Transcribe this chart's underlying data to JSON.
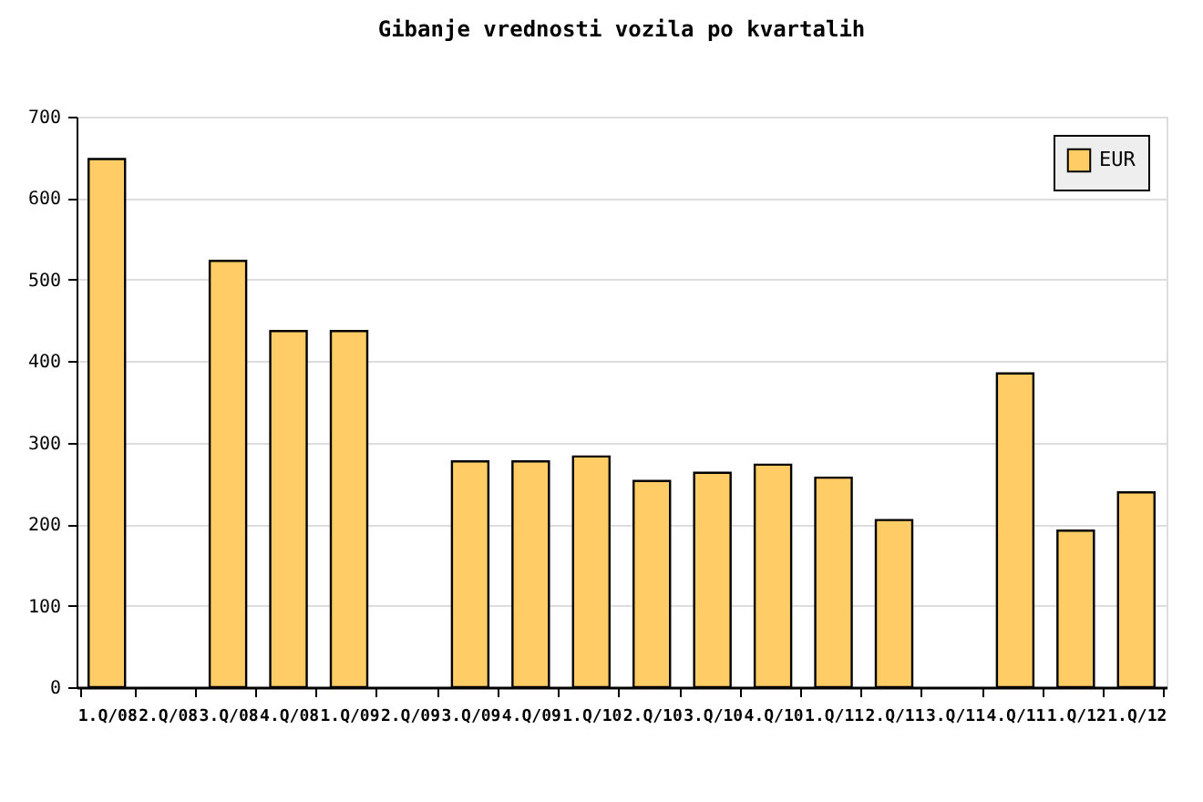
{
  "chart_data": {
    "type": "bar",
    "title": "Gibanje vrednosti vozila po kvartalih",
    "categories": [
      "1.Q/08",
      "2.Q/08",
      "3.Q/08",
      "4.Q/08",
      "1.Q/09",
      "2.Q/09",
      "3.Q/09",
      "4.Q/09",
      "1.Q/10",
      "2.Q/10",
      "3.Q/10",
      "4.Q/10",
      "1.Q/11",
      "2.Q/11",
      "3.Q/11",
      "4.Q/11",
      "1.Q/12",
      "1.Q/12"
    ],
    "series": [
      {
        "name": "EUR",
        "color": "#ffcc66",
        "values": [
          648,
          null,
          523,
          437,
          437,
          null,
          277,
          277,
          283,
          253,
          263,
          273,
          257,
          205,
          null,
          385,
          192,
          239
        ]
      }
    ],
    "ylim": [
      0,
      700
    ],
    "yticks": [
      0,
      100,
      200,
      300,
      400,
      500,
      600,
      700
    ],
    "grid": "y",
    "legend": "top right"
  }
}
